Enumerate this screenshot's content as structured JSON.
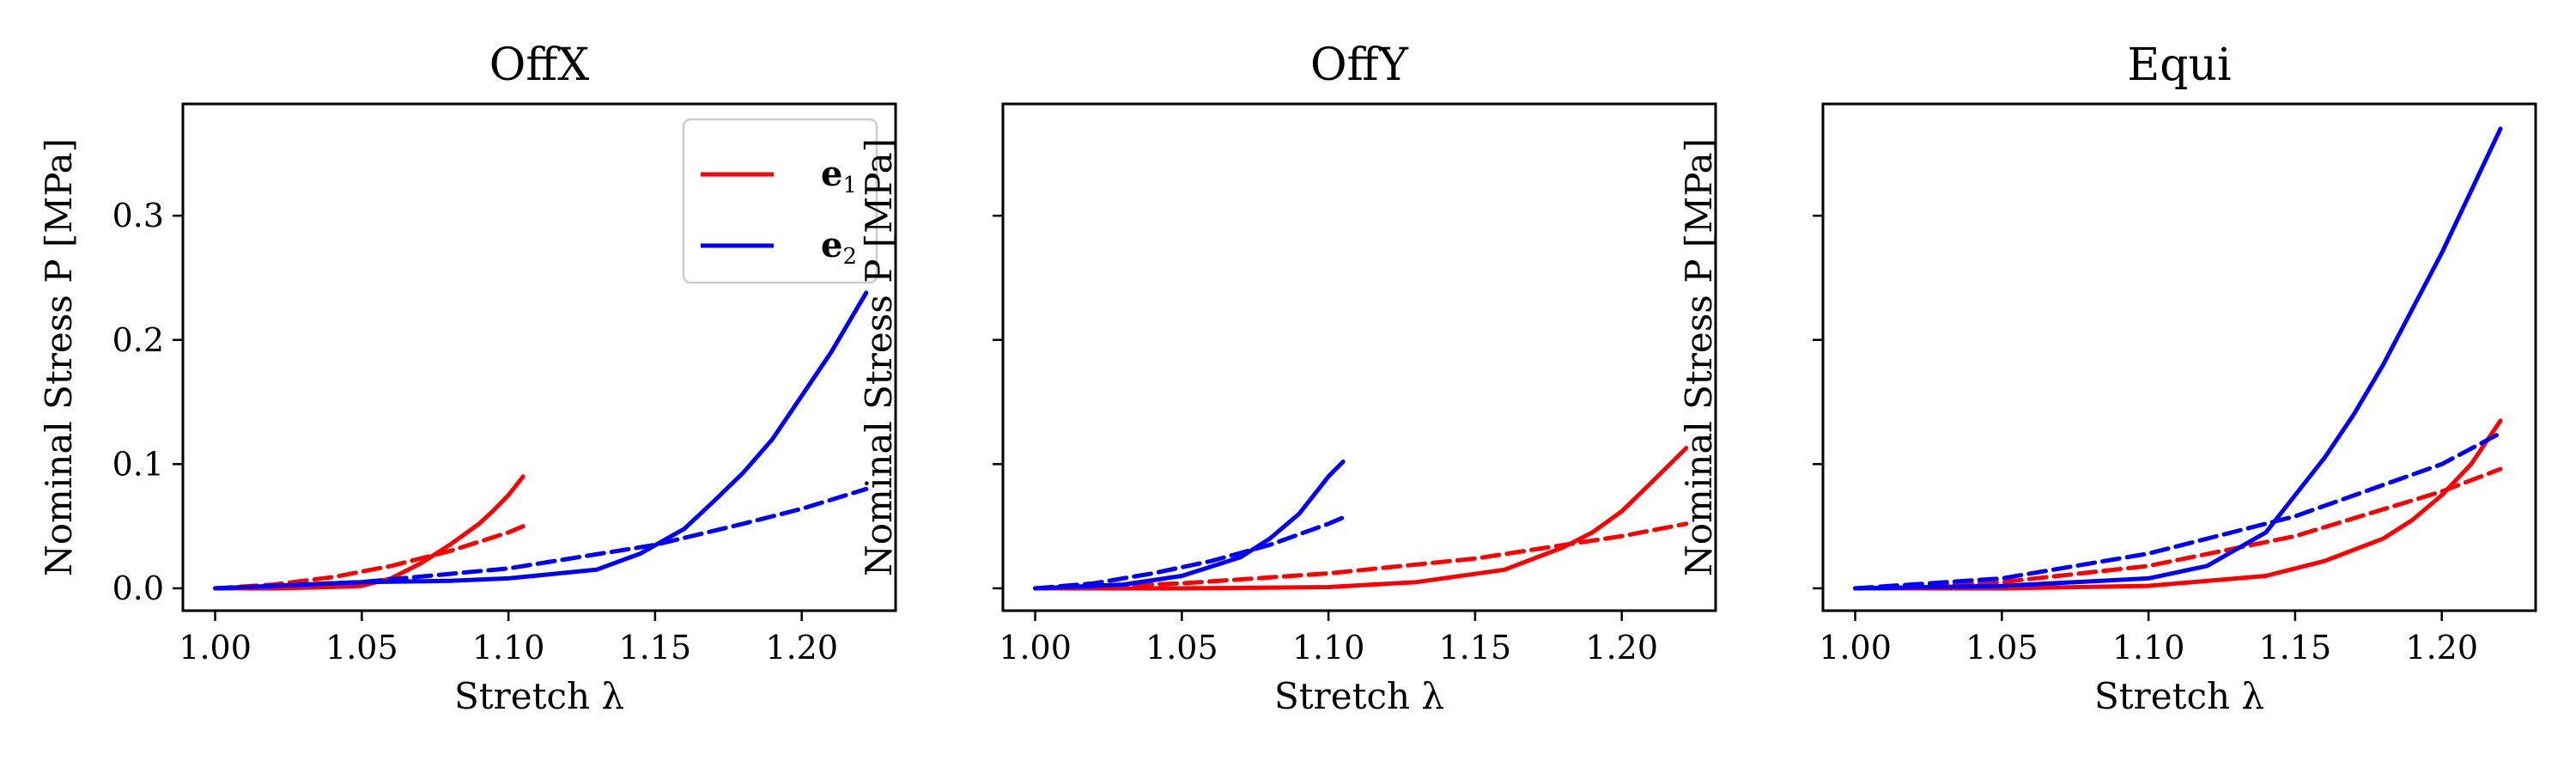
{
  "legend": {
    "entries": [
      {
        "label": "e",
        "sub": "1",
        "color": "#ff0000"
      },
      {
        "label": "e",
        "sub": "2",
        "color": "#0000ff"
      }
    ]
  },
  "chart_data": [
    {
      "type": "line",
      "title": "OffX",
      "xlabel": "Stretch λ",
      "ylabel": "Nominal Stress P [MPa]",
      "xlim": [
        0.989,
        1.232
      ],
      "ylim": [
        -0.018,
        0.39
      ],
      "xticks": [
        1.0,
        1.05,
        1.1,
        1.15,
        1.2
      ],
      "xtick_labels": [
        "1.00",
        "1.05",
        "1.10",
        "1.15",
        "1.20"
      ],
      "yticks": [
        0.0,
        0.1,
        0.2,
        0.3
      ],
      "ytick_labels": [
        "0.0",
        "0.1",
        "0.2",
        "0.3"
      ],
      "show_ytick_labels": true,
      "legend": "top-right",
      "series": [
        {
          "name": "e1",
          "color": "#ff0000",
          "style": "solid",
          "x": [
            1.0,
            1.02,
            1.04,
            1.05,
            1.06,
            1.07,
            1.08,
            1.09,
            1.095,
            1.1,
            1.105
          ],
          "y": [
            0.0,
            0.0,
            0.001,
            0.002,
            0.008,
            0.02,
            0.035,
            0.052,
            0.063,
            0.075,
            0.09
          ]
        },
        {
          "color": "#ff0000",
          "style": "dashed",
          "x": [
            1.0,
            1.02,
            1.04,
            1.06,
            1.08,
            1.1,
            1.105
          ],
          "y": [
            0.0,
            0.003,
            0.009,
            0.018,
            0.03,
            0.045,
            0.05
          ]
        },
        {
          "name": "e2",
          "color": "#0000ff",
          "style": "solid",
          "x": [
            1.0,
            1.05,
            1.08,
            1.1,
            1.13,
            1.145,
            1.16,
            1.17,
            1.18,
            1.19,
            1.2,
            1.21,
            1.222
          ],
          "y": [
            0.0,
            0.005,
            0.006,
            0.008,
            0.015,
            0.028,
            0.048,
            0.07,
            0.093,
            0.12,
            0.155,
            0.19,
            0.238
          ]
        },
        {
          "color": "#0000ff",
          "style": "dashed",
          "x": [
            1.0,
            1.05,
            1.1,
            1.15,
            1.18,
            1.2,
            1.222
          ],
          "y": [
            0.0,
            0.005,
            0.016,
            0.035,
            0.052,
            0.064,
            0.08
          ]
        }
      ]
    },
    {
      "type": "line",
      "title": "OffY",
      "xlabel": "Stretch λ",
      "ylabel": "Nominal Stress P [MPa]",
      "xlim": [
        0.989,
        1.232
      ],
      "ylim": [
        -0.018,
        0.39
      ],
      "xticks": [
        1.0,
        1.05,
        1.1,
        1.15,
        1.2
      ],
      "xtick_labels": [
        "1.00",
        "1.05",
        "1.10",
        "1.15",
        "1.20"
      ],
      "yticks": [
        0.0,
        0.1,
        0.2,
        0.3
      ],
      "show_ytick_labels": false,
      "series": [
        {
          "name": "e1",
          "color": "#ff0000",
          "style": "solid",
          "x": [
            1.0,
            1.05,
            1.1,
            1.13,
            1.16,
            1.18,
            1.19,
            1.2,
            1.21,
            1.222
          ],
          "y": [
            0.0,
            0.0,
            0.001,
            0.005,
            0.015,
            0.033,
            0.045,
            0.062,
            0.085,
            0.113
          ]
        },
        {
          "color": "#ff0000",
          "style": "dashed",
          "x": [
            1.0,
            1.05,
            1.1,
            1.15,
            1.2,
            1.222
          ],
          "y": [
            0.0,
            0.004,
            0.012,
            0.024,
            0.042,
            0.052
          ]
        },
        {
          "name": "e2",
          "color": "#0000ff",
          "style": "solid",
          "x": [
            1.0,
            1.03,
            1.05,
            1.07,
            1.08,
            1.09,
            1.095,
            1.1,
            1.105
          ],
          "y": [
            0.0,
            0.003,
            0.01,
            0.025,
            0.04,
            0.06,
            0.075,
            0.09,
            0.102
          ]
        },
        {
          "color": "#0000ff",
          "style": "dashed",
          "x": [
            1.0,
            1.02,
            1.04,
            1.06,
            1.08,
            1.1,
            1.105
          ],
          "y": [
            0.0,
            0.004,
            0.012,
            0.022,
            0.035,
            0.052,
            0.057
          ]
        }
      ]
    },
    {
      "type": "line",
      "title": "Equi",
      "xlabel": "Stretch λ",
      "ylabel": "Nominal Stress P [MPa]",
      "xlim": [
        0.989,
        1.232
      ],
      "ylim": [
        -0.018,
        0.39
      ],
      "xticks": [
        1.0,
        1.05,
        1.1,
        1.15,
        1.2
      ],
      "xtick_labels": [
        "1.00",
        "1.05",
        "1.10",
        "1.15",
        "1.20"
      ],
      "yticks": [
        0.0,
        0.1,
        0.2,
        0.3
      ],
      "show_ytick_labels": false,
      "series": [
        {
          "name": "e1",
          "color": "#ff0000",
          "style": "solid",
          "x": [
            1.0,
            1.05,
            1.1,
            1.14,
            1.16,
            1.18,
            1.19,
            1.2,
            1.21,
            1.22
          ],
          "y": [
            0.0,
            0.0,
            0.002,
            0.01,
            0.022,
            0.04,
            0.055,
            0.075,
            0.1,
            0.135
          ]
        },
        {
          "color": "#ff0000",
          "style": "dashed",
          "x": [
            1.0,
            1.05,
            1.1,
            1.15,
            1.2,
            1.22
          ],
          "y": [
            0.0,
            0.005,
            0.018,
            0.042,
            0.078,
            0.096
          ]
        },
        {
          "name": "e2",
          "color": "#0000ff",
          "style": "solid",
          "x": [
            1.0,
            1.05,
            1.1,
            1.12,
            1.14,
            1.15,
            1.16,
            1.17,
            1.18,
            1.19,
            1.2,
            1.21,
            1.22
          ],
          "y": [
            0.0,
            0.002,
            0.008,
            0.018,
            0.045,
            0.075,
            0.105,
            0.14,
            0.18,
            0.225,
            0.27,
            0.32,
            0.37
          ]
        },
        {
          "color": "#0000ff",
          "style": "dashed",
          "x": [
            1.0,
            1.05,
            1.1,
            1.15,
            1.2,
            1.22
          ],
          "y": [
            0.0,
            0.008,
            0.028,
            0.058,
            0.1,
            0.125
          ]
        }
      ]
    }
  ]
}
